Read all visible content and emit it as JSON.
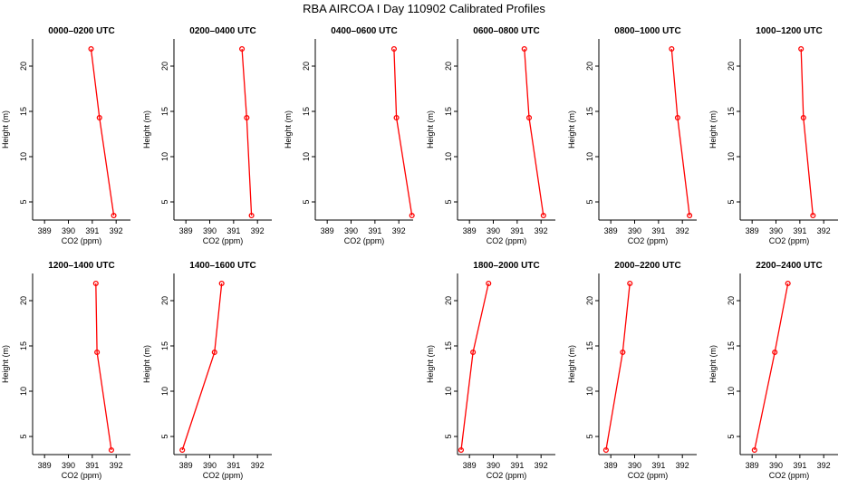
{
  "figure_title": "RBA AIRCOA I  Day 110902  Calibrated Profiles",
  "colors": {
    "line": "#ff0000",
    "marker": "#ff0000",
    "axis": "#000000"
  },
  "chart_data": [
    {
      "type": "line",
      "title": "0000–0200 UTC",
      "xlabel": "CO2 (ppm)",
      "ylabel": "Height (m)",
      "xlim": [
        388.5,
        392.6
      ],
      "ylim": [
        3,
        23
      ],
      "x_ticks": [
        389,
        390,
        391,
        392
      ],
      "y_ticks": [
        5,
        10,
        15,
        20
      ],
      "x": [
        391.9,
        391.3,
        390.95
      ],
      "y": [
        3.5,
        14.3,
        21.9
      ]
    },
    {
      "type": "line",
      "title": "0200–0400 UTC",
      "xlabel": "CO2 (ppm)",
      "ylabel": "Height (m)",
      "xlim": [
        388.5,
        392.6
      ],
      "ylim": [
        3,
        23
      ],
      "x_ticks": [
        389,
        390,
        391,
        392
      ],
      "y_ticks": [
        5,
        10,
        15,
        20
      ],
      "x": [
        391.75,
        391.55,
        391.35
      ],
      "y": [
        3.5,
        14.3,
        21.9
      ]
    },
    {
      "type": "line",
      "title": "0400–0600 UTC",
      "xlabel": "CO2 (ppm)",
      "ylabel": "Height (m)",
      "xlim": [
        388.5,
        392.6
      ],
      "ylim": [
        3,
        23
      ],
      "x_ticks": [
        389,
        390,
        391,
        392
      ],
      "y_ticks": [
        5,
        10,
        15,
        20
      ],
      "x": [
        392.55,
        391.9,
        391.8
      ],
      "y": [
        3.5,
        14.3,
        21.9
      ]
    },
    {
      "type": "line",
      "title": "0600–0800 UTC",
      "xlabel": "CO2 (ppm)",
      "ylabel": "Height (m)",
      "xlim": [
        388.5,
        392.6
      ],
      "ylim": [
        3,
        23
      ],
      "x_ticks": [
        389,
        390,
        391,
        392
      ],
      "y_ticks": [
        5,
        10,
        15,
        20
      ],
      "x": [
        392.1,
        391.5,
        391.3
      ],
      "y": [
        3.5,
        14.3,
        21.9
      ]
    },
    {
      "type": "line",
      "title": "0800–1000 UTC",
      "xlabel": "CO2 (ppm)",
      "ylabel": "Height (m)",
      "xlim": [
        388.5,
        392.6
      ],
      "ylim": [
        3,
        23
      ],
      "x_ticks": [
        389,
        390,
        391,
        392
      ],
      "y_ticks": [
        5,
        10,
        15,
        20
      ],
      "x": [
        392.3,
        391.8,
        391.55
      ],
      "y": [
        3.5,
        14.3,
        21.9
      ]
    },
    {
      "type": "line",
      "title": "1000–1200 UTC",
      "xlabel": "CO2 (ppm)",
      "ylabel": "Height (m)",
      "xlim": [
        388.5,
        392.6
      ],
      "ylim": [
        3,
        23
      ],
      "x_ticks": [
        389,
        390,
        391,
        392
      ],
      "y_ticks": [
        5,
        10,
        15,
        20
      ],
      "x": [
        391.55,
        391.15,
        391.05
      ],
      "y": [
        3.5,
        14.3,
        21.9
      ]
    },
    {
      "type": "line",
      "title": "1200–1400 UTC",
      "xlabel": "CO2 (ppm)",
      "ylabel": "Height (m)",
      "xlim": [
        388.5,
        392.6
      ],
      "ylim": [
        3,
        23
      ],
      "x_ticks": [
        389,
        390,
        391,
        392
      ],
      "y_ticks": [
        5,
        10,
        15,
        20
      ],
      "x": [
        391.8,
        391.2,
        391.15
      ],
      "y": [
        3.5,
        14.3,
        21.9
      ]
    },
    {
      "type": "line",
      "title": "1400–1600 UTC",
      "xlabel": "CO2 (ppm)",
      "ylabel": "Height (m)",
      "xlim": [
        388.5,
        392.6
      ],
      "ylim": [
        3,
        23
      ],
      "x_ticks": [
        389,
        390,
        391,
        392
      ],
      "y_ticks": [
        5,
        10,
        15,
        20
      ],
      "x": [
        388.85,
        390.2,
        390.5
      ],
      "y": [
        3.5,
        14.3,
        21.9
      ]
    },
    null,
    {
      "type": "line",
      "title": "1800–2000 UTC",
      "xlabel": "CO2 (ppm)",
      "ylabel": "Height (m)",
      "xlim": [
        388.5,
        392.6
      ],
      "ylim": [
        3,
        23
      ],
      "x_ticks": [
        389,
        390,
        391,
        392
      ],
      "y_ticks": [
        5,
        10,
        15,
        20
      ],
      "x": [
        388.65,
        389.15,
        389.8
      ],
      "y": [
        3.5,
        14.3,
        21.9
      ]
    },
    {
      "type": "line",
      "title": "2000–2200 UTC",
      "xlabel": "CO2 (ppm)",
      "ylabel": "Height (m)",
      "xlim": [
        388.5,
        392.6
      ],
      "ylim": [
        3,
        23
      ],
      "x_ticks": [
        389,
        390,
        391,
        392
      ],
      "y_ticks": [
        5,
        10,
        15,
        20
      ],
      "x": [
        388.8,
        389.5,
        389.8
      ],
      "y": [
        3.5,
        14.3,
        21.9
      ]
    },
    {
      "type": "line",
      "title": "2200–2400 UTC",
      "xlabel": "CO2 (ppm)",
      "ylabel": "Height (m)",
      "xlim": [
        388.5,
        392.6
      ],
      "ylim": [
        3,
        23
      ],
      "x_ticks": [
        389,
        390,
        391,
        392
      ],
      "y_ticks": [
        5,
        10,
        15,
        20
      ],
      "x": [
        389.1,
        389.95,
        390.5
      ],
      "y": [
        3.5,
        14.3,
        21.9
      ]
    }
  ]
}
